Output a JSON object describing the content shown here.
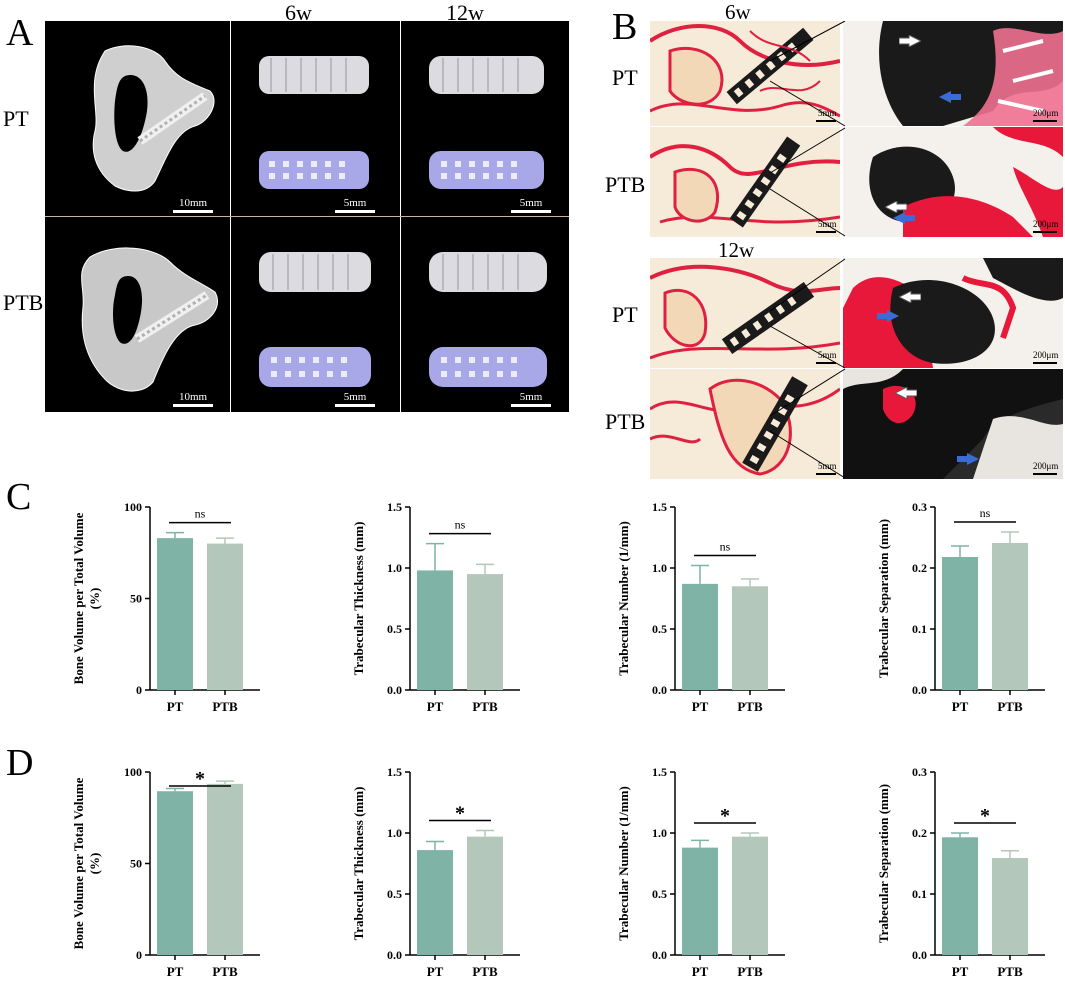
{
  "panel_letters": {
    "a": "A",
    "b": "B",
    "c": "C",
    "d": "D"
  },
  "panel_a": {
    "columns": [
      "6w",
      "12w"
    ],
    "rows": [
      "PT",
      "PTB"
    ],
    "scale_bars": {
      "overview": "10mm",
      "implant": "5mm"
    }
  },
  "panel_b": {
    "timepoints": [
      "6w",
      "12w"
    ],
    "rows": [
      "PT",
      "PTB",
      "PT",
      "PTB"
    ],
    "scale_bars": {
      "overview": "5mm",
      "zoom": "200μm"
    }
  },
  "colors": {
    "pt": "#7fb3a5",
    "ptb": "#b3c8ba",
    "implant_purple": "#a8a8e8",
    "stain_red": "#e02040"
  },
  "chart_data": [
    {
      "panel": "C",
      "type": "bar",
      "categories": [
        "PT",
        "PTB"
      ],
      "values": [
        83,
        80
      ],
      "errors": [
        3,
        3
      ],
      "ylabel": "Bone Volume per Total Volume (%)",
      "ylabel_lines": [
        "Bone Volume per Total Volume",
        "(%)"
      ],
      "ylim": [
        0,
        100
      ],
      "yticks": [
        0,
        50,
        100
      ],
      "ytick_labels": [
        "0",
        "50",
        "100"
      ],
      "significance": "ns"
    },
    {
      "panel": "C",
      "type": "bar",
      "categories": [
        "PT",
        "PTB"
      ],
      "values": [
        0.98,
        0.95
      ],
      "errors": [
        0.22,
        0.08
      ],
      "ylabel": "Trabecular Thickness (mm)",
      "ylabel_lines": [
        "Trabecular Thickness (mm)"
      ],
      "ylim": [
        0,
        1.5
      ],
      "yticks": [
        0,
        0.5,
        1.0,
        1.5
      ],
      "ytick_labels": [
        "0.0",
        "0.5",
        "1.0",
        "1.5"
      ],
      "significance": "ns"
    },
    {
      "panel": "C",
      "type": "bar",
      "categories": [
        "PT",
        "PTB"
      ],
      "values": [
        0.87,
        0.85
      ],
      "errors": [
        0.15,
        0.06
      ],
      "ylabel": "Trabecular Number (1/mm)",
      "ylabel_lines": [
        "Trabecular Number (1/mm)"
      ],
      "ylim": [
        0,
        1.5
      ],
      "yticks": [
        0,
        0.5,
        1.0,
        1.5
      ],
      "ytick_labels": [
        "0.0",
        "0.5",
        "1.0",
        "1.5"
      ],
      "significance": "ns"
    },
    {
      "panel": "C",
      "type": "bar",
      "categories": [
        "PT",
        "PTB"
      ],
      "values": [
        0.218,
        0.241
      ],
      "errors": [
        0.018,
        0.018
      ],
      "ylabel": "Trabecular Separation (mm)",
      "ylabel_lines": [
        "Trabecular Separation  (mm)"
      ],
      "ylim": [
        0,
        0.3
      ],
      "yticks": [
        0,
        0.1,
        0.2,
        0.3
      ],
      "ytick_labels": [
        "0.0",
        "0.1",
        "0.2",
        "0.3"
      ],
      "significance": "ns"
    },
    {
      "panel": "D",
      "type": "bar",
      "categories": [
        "PT",
        "PTB"
      ],
      "values": [
        89.5,
        93.5
      ],
      "errors": [
        1.5,
        1.5
      ],
      "ylabel": "Bone Volume per Total Volume (%)",
      "ylabel_lines": [
        "Bone Volume per Total Volume",
        "(%)"
      ],
      "ylim": [
        0,
        100
      ],
      "yticks": [
        0,
        50,
        100
      ],
      "ytick_labels": [
        "0",
        "50",
        "100"
      ],
      "significance": "*"
    },
    {
      "panel": "D",
      "type": "bar",
      "categories": [
        "PT",
        "PTB"
      ],
      "values": [
        0.86,
        0.97
      ],
      "errors": [
        0.07,
        0.05
      ],
      "ylabel": "Trabecular Thickness (mm)",
      "ylabel_lines": [
        "Trabecular Thickness (mm)"
      ],
      "ylim": [
        0,
        1.5
      ],
      "yticks": [
        0,
        0.5,
        1.0,
        1.5
      ],
      "ytick_labels": [
        "0.0",
        "0.5",
        "1.0",
        "1.5"
      ],
      "significance": "*"
    },
    {
      "panel": "D",
      "type": "bar",
      "categories": [
        "PT",
        "PTB"
      ],
      "values": [
        0.88,
        0.97
      ],
      "errors": [
        0.06,
        0.03
      ],
      "ylabel": "Trabecular Number (1/mm)",
      "ylabel_lines": [
        "Trabecular Number (1/mm)"
      ],
      "ylim": [
        0,
        1.5
      ],
      "yticks": [
        0,
        0.5,
        1.0,
        1.5
      ],
      "ytick_labels": [
        "0.0",
        "0.5",
        "1.0",
        "1.5"
      ],
      "significance": "*"
    },
    {
      "panel": "D",
      "type": "bar",
      "categories": [
        "PT",
        "PTB"
      ],
      "values": [
        0.193,
        0.159
      ],
      "errors": [
        0.007,
        0.012
      ],
      "ylabel": "Trabecular Separation (mm)",
      "ylabel_lines": [
        "Trabecular Separation (mm)"
      ],
      "ylim": [
        0,
        0.3
      ],
      "yticks": [
        0,
        0.1,
        0.2,
        0.3
      ],
      "ytick_labels": [
        "0.0",
        "0.1",
        "0.2",
        "0.3"
      ],
      "significance": "*"
    }
  ]
}
